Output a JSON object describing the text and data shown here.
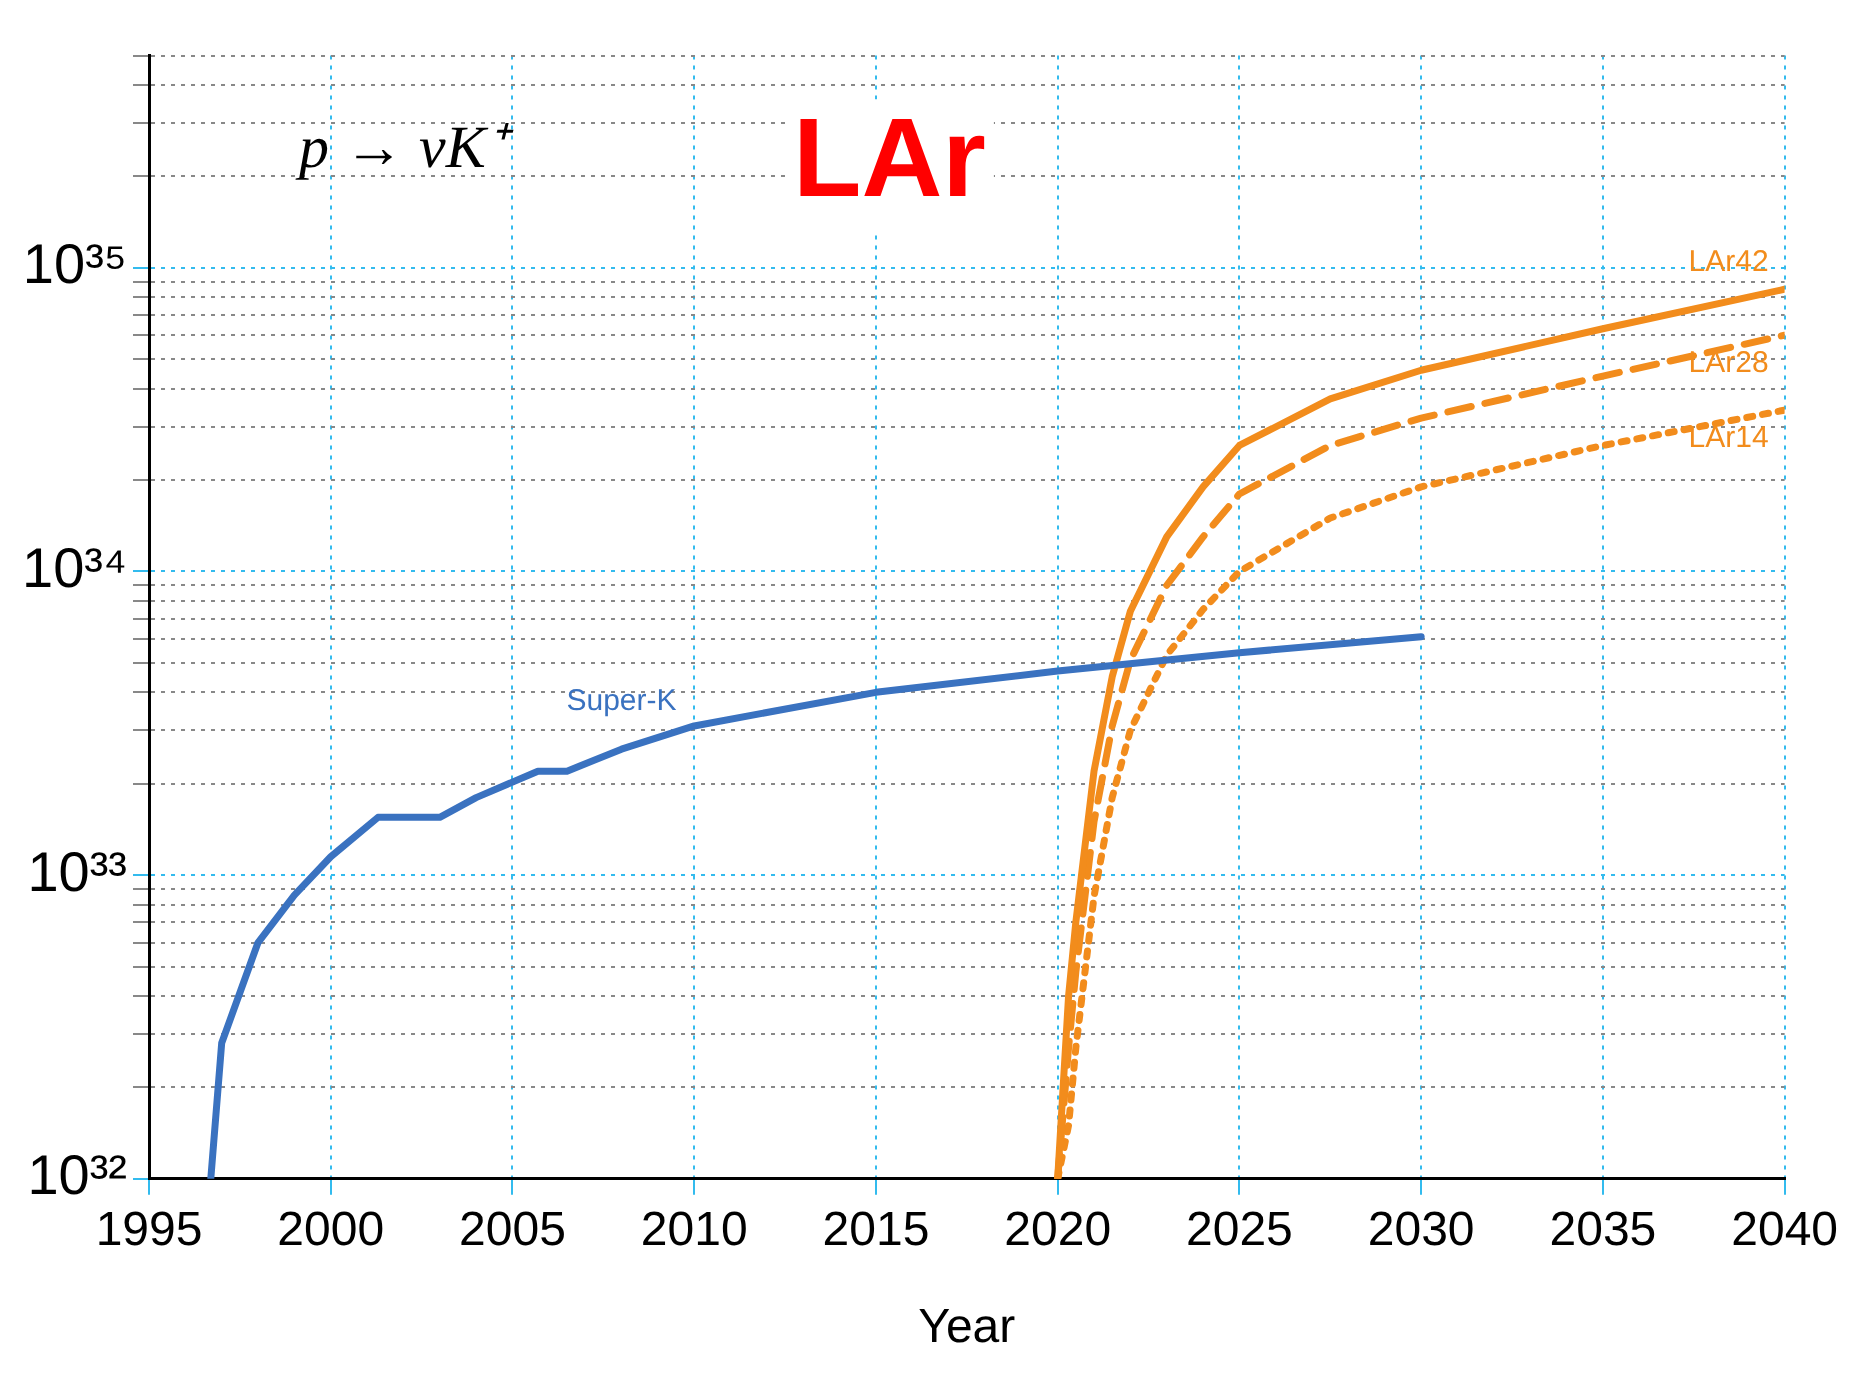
{
  "chart_data": {
    "type": "line",
    "title": "LAr",
    "xlabel": "Year",
    "annotations": [
      "p → νK⁺"
    ],
    "xlim": [
      1995,
      2040
    ],
    "xticks": [
      1995,
      2000,
      2005,
      2010,
      2015,
      2020,
      2025,
      2030,
      2035,
      2040
    ],
    "ylim": [
      1e+32,
      5e+35
    ],
    "log": "y",
    "grid": true,
    "legend": false,
    "marker": "none",
    "yticks": [
      {
        "value": 1e+32,
        "label": "10³²"
      },
      {
        "value": 2e+32,
        "label": null
      },
      {
        "value": 3e+32,
        "label": null
      },
      {
        "value": 4e+32,
        "label": null
      },
      {
        "value": 5e+32,
        "label": null
      },
      {
        "value": 6e+32,
        "label": null
      },
      {
        "value": 7e+32,
        "label": null
      },
      {
        "value": 8e+32,
        "label": null
      },
      {
        "value": 9e+32,
        "label": null
      },
      {
        "value": 1e+33,
        "label": "10³³"
      },
      {
        "value": 2e+33,
        "label": null
      },
      {
        "value": 3e+33,
        "label": null
      },
      {
        "value": 4e+33,
        "label": null
      },
      {
        "value": 5e+33,
        "label": null
      },
      {
        "value": 6e+33,
        "label": null
      },
      {
        "value": 7e+33,
        "label": null
      },
      {
        "value": 8e+33,
        "label": null
      },
      {
        "value": 9e+33,
        "label": null
      },
      {
        "value": 1e+34,
        "label": "10³⁴"
      },
      {
        "value": 2e+34,
        "label": null
      },
      {
        "value": 3e+34,
        "label": null
      },
      {
        "value": 4e+34,
        "label": null
      },
      {
        "value": 5e+34,
        "label": null
      },
      {
        "value": 6e+34,
        "label": null
      },
      {
        "value": 7e+34,
        "label": null
      },
      {
        "value": 8e+34,
        "label": null
      },
      {
        "value": 9e+34,
        "label": null
      },
      {
        "value": 1e+35,
        "label": "10³⁵"
      },
      {
        "value": 2e+35,
        "label": null
      },
      {
        "value": 3e+35,
        "label": null
      },
      {
        "value": 4e+35,
        "label": null
      },
      {
        "value": 5e+35,
        "label": null
      }
    ],
    "series": [
      {
        "name": "Super-K",
        "color": "#3a72c0",
        "line_style": "solid",
        "x": [
          1996.7,
          1997,
          1998,
          1999,
          2000,
          2001.3,
          2003,
          2004,
          2005.7,
          2006.5,
          2008,
          2010,
          2015,
          2020,
          2025,
          2030
        ],
        "values": [
          1e+32,
          2.8e+32,
          6e+32,
          8.6e+32,
          1.15e+33,
          1.55e+33,
          1.55e+33,
          1.8e+33,
          2.2e+33,
          2.2e+33,
          2.6e+33,
          3.1e+33,
          4e+33,
          4.7e+33,
          5.4e+33,
          6.1e+33
        ]
      },
      {
        "name": "LAr42",
        "color": "#f28c1c",
        "line_style": "solid",
        "x": [
          2020,
          2020.3,
          2020.5,
          2021,
          2021.5,
          2022,
          2023,
          2024,
          2025,
          2027.5,
          2030,
          2035,
          2040
        ],
        "values": [
          1e+32,
          4e+32,
          7e+32,
          2.2e+33,
          4.5e+33,
          7.4e+33,
          1.3e+34,
          1.9e+34,
          2.6e+34,
          3.7e+34,
          4.6e+34,
          6.3e+34,
          8.5e+34
        ]
      },
      {
        "name": "LAr28",
        "color": "#f28c1c",
        "line_style": "dashed",
        "x": [
          2020,
          2020.3,
          2020.5,
          2021,
          2021.5,
          2022,
          2023,
          2024,
          2025,
          2027.5,
          2030,
          2035,
          2040
        ],
        "values": [
          1e+32,
          2.7e+32,
          4.8e+32,
          1.5e+33,
          3.1e+33,
          5.1e+33,
          9e+33,
          1.3e+34,
          1.8e+34,
          2.6e+34,
          3.2e+34,
          4.4e+34,
          6e+34
        ]
      },
      {
        "name": "LAr14",
        "color": "#f28c1c",
        "line_style": "dotted",
        "x": [
          2020,
          2020.3,
          2020.5,
          2021,
          2021.5,
          2022,
          2023,
          2024,
          2025,
          2027.5,
          2030,
          2035,
          2040
        ],
        "values": [
          1e+32,
          1.5e+32,
          2.7e+32,
          8.5e+32,
          1.8e+33,
          3e+33,
          5.3e+33,
          7.5e+33,
          1e+34,
          1.5e+34,
          1.9e+34,
          2.6e+34,
          3.4e+34
        ]
      }
    ]
  }
}
